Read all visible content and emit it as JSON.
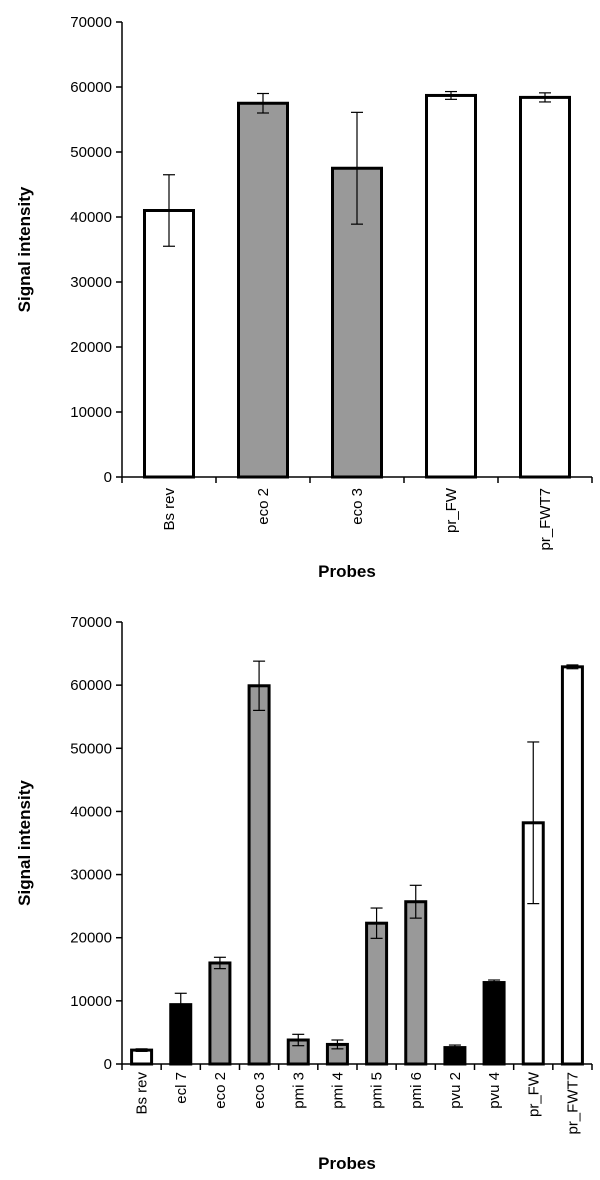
{
  "colors": {
    "white": "#ffffff",
    "gray": "#999999",
    "black": "#000000"
  },
  "chart_data": [
    {
      "type": "bar",
      "ylabel": "Signal intensity",
      "xlabel": "Probes",
      "ylim": [
        0,
        70000
      ],
      "yticks": [
        "0",
        "10000",
        "20000",
        "30000",
        "40000",
        "50000",
        "60000",
        "70000"
      ],
      "grid": false,
      "categories": [
        "Bs rev",
        "eco 2",
        "eco 3",
        "pr_FW",
        "pr_FWT7"
      ],
      "values": [
        41000,
        57500,
        47500,
        58700,
        58400
      ],
      "errors": [
        5500,
        1500,
        8600,
        600,
        700
      ],
      "fills": [
        "white",
        "gray",
        "gray",
        "white",
        "white"
      ]
    },
    {
      "type": "bar",
      "ylabel": "Signal intensity",
      "xlabel": "Probes",
      "ylim": [
        0,
        70000
      ],
      "yticks": [
        "0",
        "10000",
        "20000",
        "30000",
        "40000",
        "50000",
        "60000",
        "70000"
      ],
      "grid": false,
      "categories": [
        "Bs rev",
        "ecl 7",
        "eco 2",
        "eco 3",
        "pmi 3",
        "pmi 4",
        "pmi 5",
        "pmi 6",
        "pvu 2",
        "pvu 4",
        "pr_FW",
        "pr_FWT7"
      ],
      "values": [
        2200,
        9400,
        16000,
        59900,
        3800,
        3100,
        22300,
        25700,
        2600,
        12900,
        38200,
        62900
      ],
      "errors": [
        200,
        1800,
        900,
        3900,
        900,
        700,
        2400,
        2600,
        400,
        400,
        12800,
        300
      ],
      "fills": [
        "white",
        "black",
        "gray",
        "gray",
        "gray",
        "gray",
        "gray",
        "gray",
        "black",
        "black",
        "white",
        "white"
      ]
    }
  ]
}
